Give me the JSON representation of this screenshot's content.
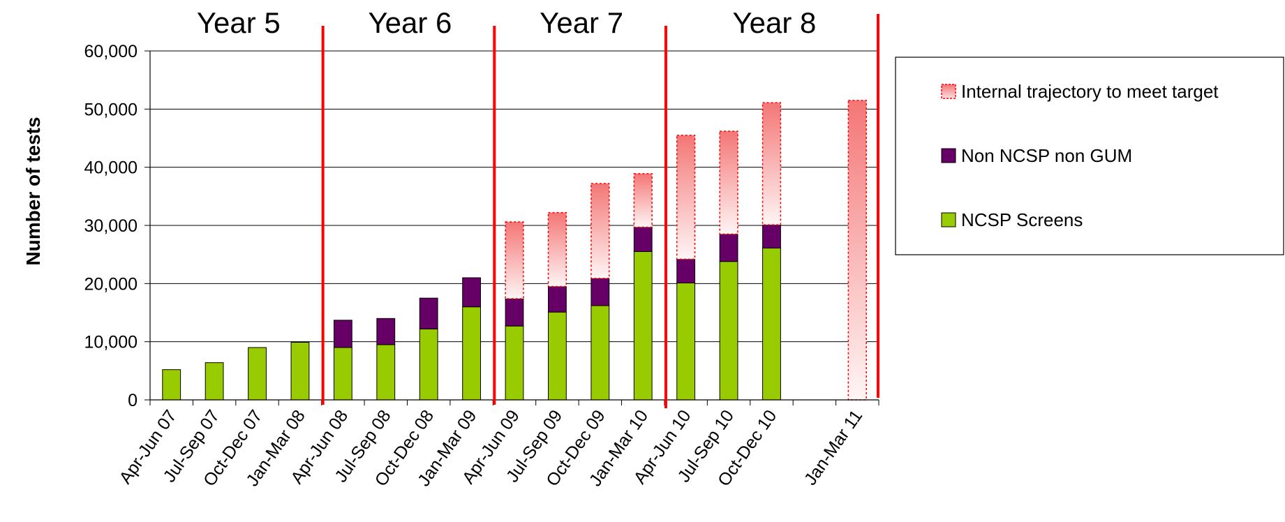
{
  "chart_data": {
    "type": "bar",
    "stacked": true,
    "categories": [
      "Apr-Jun 07",
      "Jul-Sep 07",
      "Oct-Dec 07",
      "Jan-Mar 08",
      "Apr-Jun 08",
      "Jul-Sep 08",
      "Oct-Dec 08",
      "Jan-Mar 09",
      "Apr-Jun 09",
      "Jul-Sep 09",
      "Oct-Dec 09",
      "Jan-Mar 10",
      "Apr-Jun 10",
      "Jul-Sep 10",
      "Oct-Dec 10",
      "",
      "Jan-Mar 11"
    ],
    "series": [
      {
        "name": "NCSP Screens",
        "color": "#99cc00",
        "values": [
          5200,
          6400,
          9000,
          9900,
          9000,
          9500,
          12200,
          16000,
          12700,
          15100,
          16200,
          25500,
          20100,
          23800,
          26100,
          null,
          null
        ]
      },
      {
        "name": "Non NCSP non GUM",
        "color": "#660066",
        "values": [
          null,
          null,
          null,
          null,
          4700,
          4500,
          5300,
          5000,
          4700,
          4400,
          4700,
          4200,
          4100,
          4700,
          4000,
          null,
          null
        ]
      },
      {
        "name": "Internal trajectory to meet target",
        "color": "#ff6666",
        "style": "dashed-gradient",
        "values": [
          null,
          null,
          null,
          null,
          null,
          null,
          null,
          null,
          13200,
          12700,
          16300,
          9200,
          21300,
          17700,
          21000,
          null,
          51500
        ]
      }
    ],
    "ylabel": "Number of tests",
    "ylim": [
      0,
      60000
    ],
    "yticks": [
      "0",
      "10,000",
      "20,000",
      "30,000",
      "40,000",
      "50,000",
      "60,000"
    ],
    "grid": true,
    "legend_position": "right",
    "year_labels": [
      "Year 5",
      "Year 6",
      "Year 7",
      "Year 8"
    ],
    "year_divider_color": "#ff0000"
  }
}
